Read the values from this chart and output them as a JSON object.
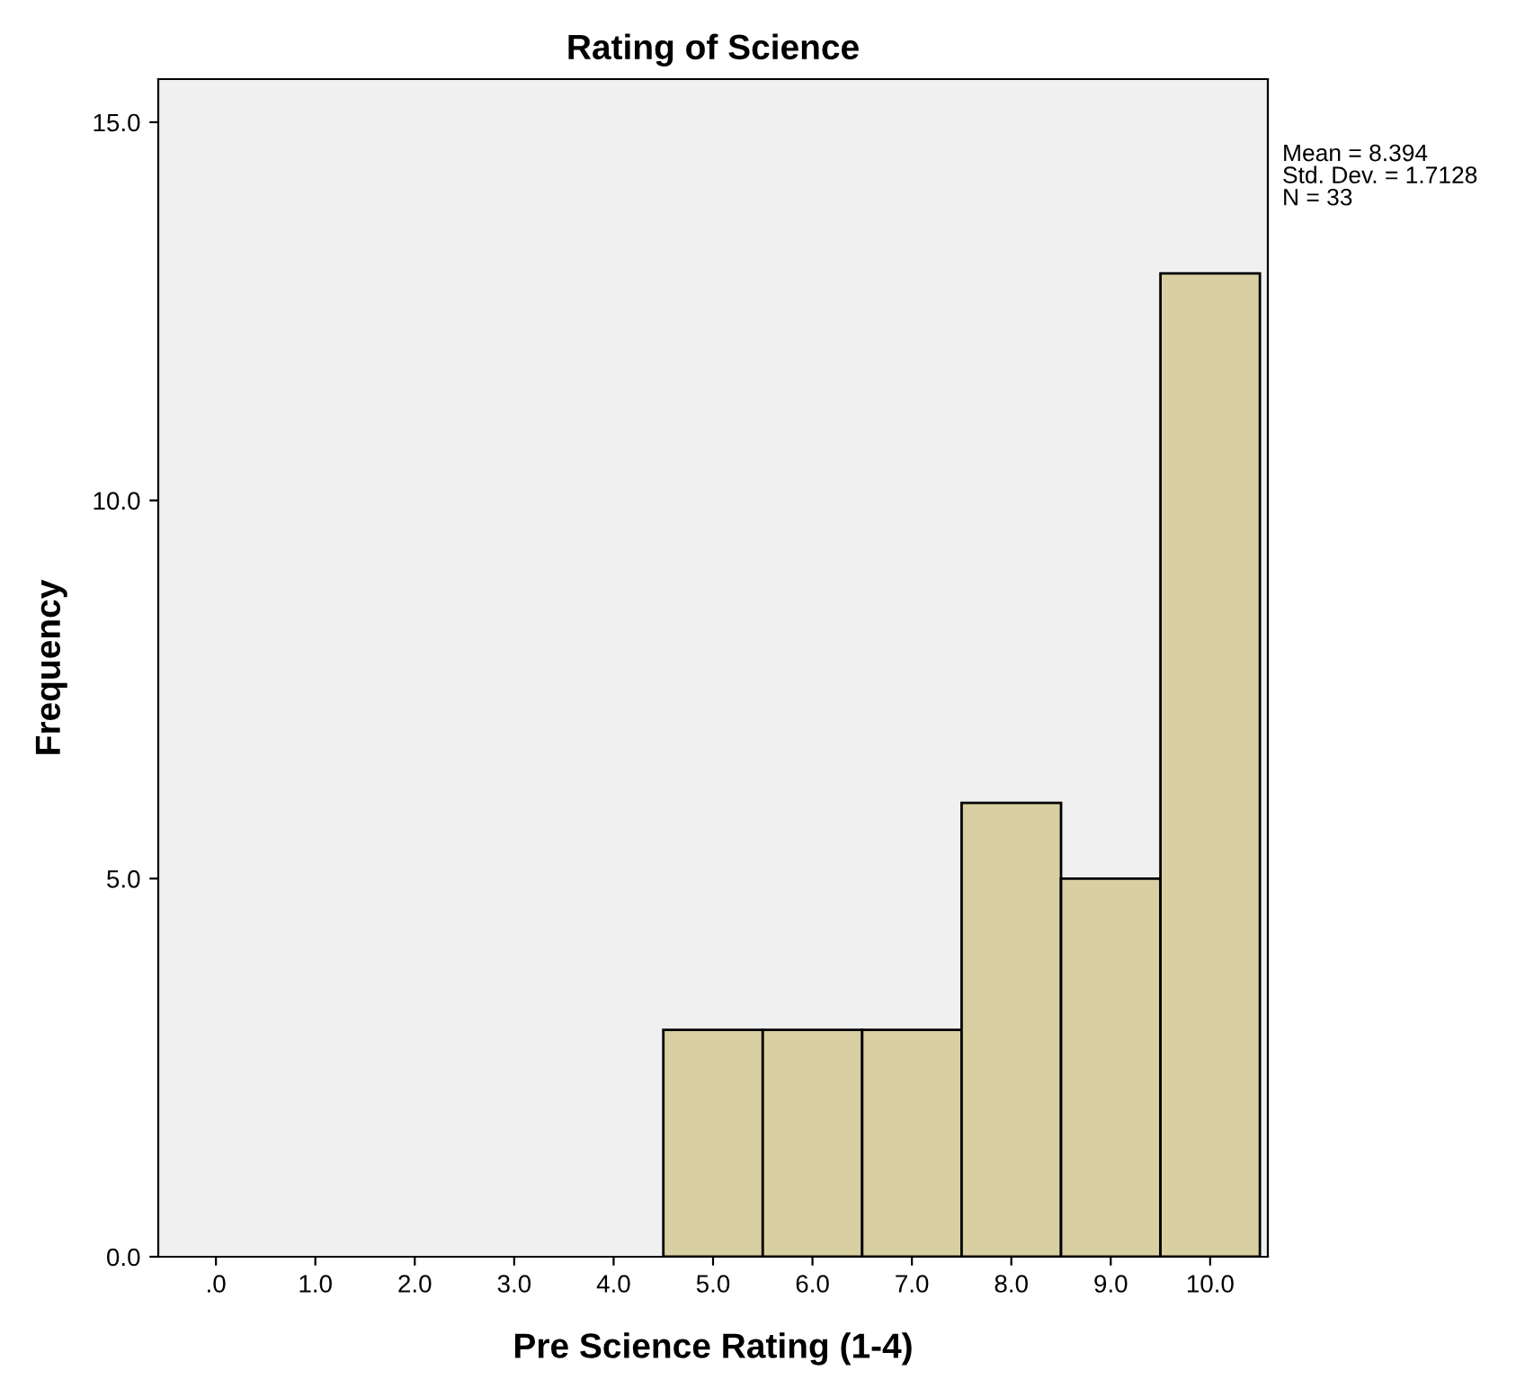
{
  "chart_data": {
    "type": "histogram",
    "title": "Rating of Science",
    "xlabel": "Pre Science Rating (1-4)",
    "ylabel": "Frequency",
    "bins": [
      4.5,
      5.5,
      6.5,
      7.5,
      8.5,
      9.5,
      10.5
    ],
    "values": [
      3,
      3,
      3,
      6,
      5,
      13
    ],
    "color": "#d8d0a2",
    "xlim": [
      -0.58,
      10.58
    ],
    "ylim": [
      0,
      15.57
    ],
    "xticks": [
      {
        "value": 0,
        "label": ".0"
      },
      {
        "value": 1,
        "label": "1.0"
      },
      {
        "value": 2,
        "label": "2.0"
      },
      {
        "value": 3,
        "label": "3.0"
      },
      {
        "value": 4,
        "label": "4.0"
      },
      {
        "value": 5,
        "label": "5.0"
      },
      {
        "value": 6,
        "label": "6.0"
      },
      {
        "value": 7,
        "label": "7.0"
      },
      {
        "value": 8,
        "label": "8.0"
      },
      {
        "value": 9,
        "label": "9.0"
      },
      {
        "value": 10,
        "label": "10.0"
      }
    ],
    "yticks": [
      {
        "value": 0,
        "label": "0.0"
      },
      {
        "value": 5,
        "label": "5.0"
      },
      {
        "value": 10,
        "label": "10.0"
      },
      {
        "value": 15,
        "label": "15.0"
      }
    ],
    "annotations": [
      "Mean = 8.394",
      "Std. Dev. = 1.7128",
      "N = 33"
    ],
    "grid": false,
    "legend": false
  }
}
